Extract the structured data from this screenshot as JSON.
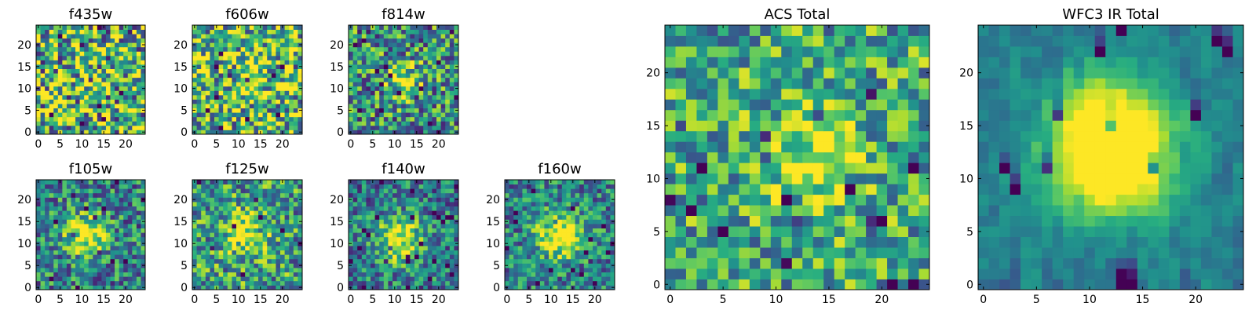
{
  "chart_data": [
    {
      "type": "heatmap",
      "title": "f435w",
      "size": 25,
      "colormap": "viridis",
      "xticks": [
        0,
        5,
        10,
        15,
        20
      ],
      "yticks": [
        0,
        5,
        10,
        15,
        20
      ],
      "center": [
        12,
        12
      ],
      "peak": 0.0,
      "sigma": 4,
      "noise": 0.55,
      "base": 0.65,
      "seed": 11
    },
    {
      "type": "heatmap",
      "title": "f606w",
      "size": 25,
      "colormap": "viridis",
      "xticks": [
        0,
        5,
        10,
        15,
        20
      ],
      "yticks": [
        0,
        5,
        10,
        15,
        20
      ],
      "center": [
        13,
        12
      ],
      "peak": 0.15,
      "sigma": 3,
      "noise": 0.5,
      "base": 0.68,
      "seed": 23
    },
    {
      "type": "heatmap",
      "title": "f814w",
      "size": 25,
      "colormap": "viridis",
      "xticks": [
        0,
        5,
        10,
        15,
        20
      ],
      "yticks": [
        0,
        5,
        10,
        15,
        20
      ],
      "center": [
        12,
        12
      ],
      "peak": 0.4,
      "sigma": 2.8,
      "noise": 0.42,
      "base": 0.5,
      "seed": 37
    },
    {
      "type": "heatmap",
      "title": "f105w",
      "size": 25,
      "colormap": "viridis",
      "xticks": [
        0,
        5,
        10,
        15,
        20
      ],
      "yticks": [
        0,
        5,
        10,
        15,
        20
      ],
      "center": [
        11,
        12
      ],
      "peak": 0.6,
      "sigma": 3.2,
      "noise": 0.35,
      "base": 0.45,
      "seed": 41
    },
    {
      "type": "heatmap",
      "title": "f125w",
      "size": 25,
      "colormap": "viridis",
      "xticks": [
        0,
        5,
        10,
        15,
        20
      ],
      "yticks": [
        0,
        5,
        10,
        15,
        20
      ],
      "center": [
        12,
        12
      ],
      "peak": 0.45,
      "sigma": 3.4,
      "noise": 0.38,
      "base": 0.55,
      "seed": 53
    },
    {
      "type": "heatmap",
      "title": "f140w",
      "size": 25,
      "colormap": "viridis",
      "xticks": [
        0,
        5,
        10,
        15,
        20
      ],
      "yticks": [
        0,
        5,
        10,
        15,
        20
      ],
      "center": [
        11,
        11
      ],
      "peak": 0.6,
      "sigma": 3.6,
      "noise": 0.32,
      "base": 0.42,
      "seed": 67
    },
    {
      "type": "heatmap",
      "title": "f160w",
      "size": 25,
      "colormap": "viridis",
      "xticks": [
        0,
        5,
        10,
        15,
        20
      ],
      "yticks": [
        0,
        5,
        10,
        15,
        20
      ],
      "center": [
        12,
        12
      ],
      "peak": 0.6,
      "sigma": 3.6,
      "noise": 0.32,
      "base": 0.45,
      "seed": 71
    },
    {
      "type": "heatmap",
      "title": "ACS Total",
      "size": 25,
      "colormap": "viridis",
      "xticks": [
        0,
        5,
        10,
        15,
        20
      ],
      "yticks": [
        0,
        5,
        10,
        15,
        20
      ],
      "center": [
        13,
        12
      ],
      "peak": 0.3,
      "sigma": 3.2,
      "noise": 0.35,
      "base": 0.6,
      "seed": 83
    },
    {
      "type": "heatmap",
      "title": "WFC3 IR Total",
      "size": 25,
      "colormap": "viridis",
      "xticks": [
        0,
        5,
        10,
        15,
        20
      ],
      "yticks": [
        0,
        5,
        10,
        15,
        20
      ],
      "center": [
        12,
        12
      ],
      "peak": 0.55,
      "sigma": 4.0,
      "noise": 0.16,
      "base": 0.42,
      "seed": 97
    }
  ]
}
